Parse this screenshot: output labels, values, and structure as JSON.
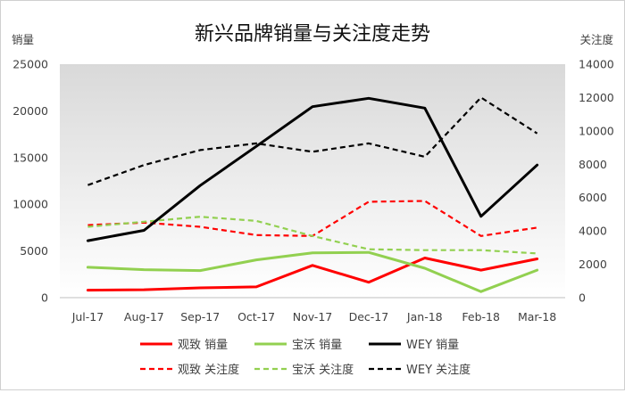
{
  "chart_data": {
    "type": "line",
    "title": "新兴品牌销量与关注度走势",
    "ylabel_left": "销量",
    "ylabel_right": "关注度",
    "categories": [
      "Jul-17",
      "Aug-17",
      "Sep-17",
      "Oct-17",
      "Nov-17",
      "Dec-17",
      "Jan-18",
      "Feb-18",
      "Mar-18"
    ],
    "y_left": {
      "min": 0,
      "max": 25000,
      "ticks": [
        0,
        5000,
        10000,
        15000,
        20000,
        25000
      ]
    },
    "y_right": {
      "min": 0,
      "max": 14000,
      "ticks": [
        0,
        2000,
        4000,
        6000,
        8000,
        10000,
        12000,
        14000
      ]
    },
    "grid": false,
    "legend_position": "bottom",
    "series": [
      {
        "name": "观致 销量",
        "axis": "left",
        "style": "solid",
        "color": "#ff0000",
        "values": [
          800,
          850,
          1050,
          1150,
          3450,
          1650,
          4250,
          2950,
          4150
        ]
      },
      {
        "name": "宝沃 销量",
        "axis": "left",
        "style": "solid",
        "color": "#92d050",
        "values": [
          3250,
          3000,
          2900,
          4050,
          4800,
          4850,
          3150,
          650,
          2950
        ]
      },
      {
        "name": "WEY 销量",
        "axis": "left",
        "style": "solid",
        "color": "#000000",
        "values": [
          6100,
          7200,
          12000,
          16200,
          20450,
          21350,
          20300,
          8700,
          14200
        ]
      },
      {
        "name": "观致 关注度",
        "axis": "right",
        "style": "dashed",
        "color": "#ff0000",
        "values": [
          4350,
          4500,
          4250,
          3750,
          3700,
          5750,
          5800,
          3700,
          4200
        ]
      },
      {
        "name": "宝沃 关注度",
        "axis": "right",
        "style": "dashed",
        "color": "#92d050",
        "values": [
          4250,
          4550,
          4850,
          4600,
          3700,
          2900,
          2850,
          2850,
          2650
        ]
      },
      {
        "name": "WEY 关注度",
        "axis": "right",
        "style": "dashed",
        "color": "#000000",
        "values": [
          6750,
          7950,
          8850,
          9250,
          8750,
          9250,
          8450,
          12000,
          9850
        ]
      }
    ]
  }
}
